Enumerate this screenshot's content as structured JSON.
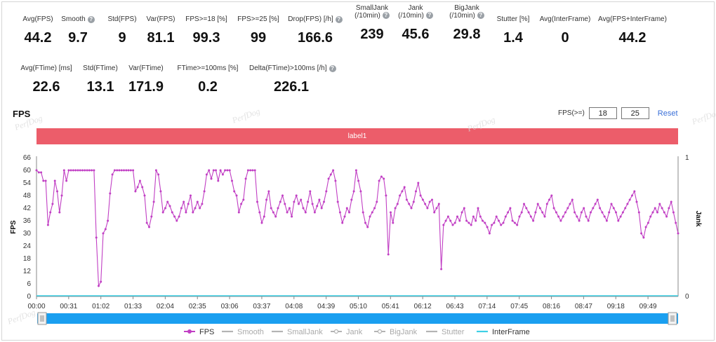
{
  "metrics_row1": [
    {
      "label": "Avg(FPS)",
      "value": "44.2",
      "help": false
    },
    {
      "label": "Smooth",
      "value": "9.7",
      "help": true
    },
    {
      "label": "Std(FPS)",
      "value": "9",
      "help": false
    },
    {
      "label": "Var(FPS)",
      "value": "81.1",
      "help": false
    },
    {
      "label": "FPS>=18 [%]",
      "value": "99.3",
      "help": false
    },
    {
      "label": "FPS>=25 [%]",
      "value": "99",
      "help": false
    },
    {
      "label": "Drop(FPS) [/h]",
      "value": "166.6",
      "help": true
    },
    {
      "label": "SmallJank",
      "label2": "(/10min)",
      "value": "239",
      "help": true
    },
    {
      "label": "Jank",
      "label2": "(/10min)",
      "value": "45.6",
      "help": true
    },
    {
      "label": "BigJank",
      "label2": "(/10min)",
      "value": "29.8",
      "help": true
    },
    {
      "label": "Stutter [%]",
      "value": "1.4",
      "help": false
    },
    {
      "label": "Avg(InterFrame)",
      "value": "0",
      "help": false
    },
    {
      "label": "Avg(FPS+InterFrame)",
      "value": "44.2",
      "help": false
    }
  ],
  "metrics_row2": [
    {
      "label": "Avg(FTime) [ms]",
      "value": "22.6",
      "help": false
    },
    {
      "label": "Std(FTime)",
      "value": "13.1",
      "help": false
    },
    {
      "label": "Var(FTime)",
      "value": "171.9",
      "help": false
    },
    {
      "label": "FTime>=100ms [%]",
      "value": "0.2",
      "help": false
    },
    {
      "label": "Delta(FTime)>100ms [/h]",
      "value": "226.1",
      "help": true
    }
  ],
  "section": {
    "title": "FPS"
  },
  "fps_filter": {
    "label": "FPS(>=)",
    "low": "18",
    "high": "25",
    "reset": "Reset"
  },
  "label_bar": {
    "text": "label1"
  },
  "watermark": "PerfDog",
  "colors": {
    "fps_line": "#c13fc4",
    "label_bar": "#ec5d6a",
    "interframe": "#3fd0e6",
    "slider": "#1a9ff0",
    "legend_grey": "#b4b4b4",
    "link": "#3a6fd8"
  },
  "chart_data": {
    "type": "line",
    "ylabel": "FPS",
    "y2label": "Jank",
    "ylim": [
      0,
      66
    ],
    "y2lim": [
      0,
      1
    ],
    "yticks": [
      "0",
      "6",
      "12",
      "18",
      "24",
      "30",
      "36",
      "42",
      "48",
      "54",
      "60",
      "66"
    ],
    "y2ticks": [
      "0",
      "1"
    ],
    "xticks": [
      "00:00",
      "00:31",
      "01:02",
      "01:33",
      "02:04",
      "02:35",
      "03:06",
      "03:37",
      "04:08",
      "04:39",
      "05:10",
      "05:41",
      "06:12",
      "06:43",
      "07:14",
      "07:45",
      "08:16",
      "08:47",
      "09:18",
      "09:49"
    ],
    "xmax_seconds": 618,
    "legend": [
      {
        "name": "FPS",
        "color": "#c13fc4",
        "active": true,
        "marker": "dot"
      },
      {
        "name": "Smooth",
        "color": "#b4b4b4",
        "active": false,
        "marker": "line"
      },
      {
        "name": "SmallJank",
        "color": "#b4b4b4",
        "active": false,
        "marker": "line"
      },
      {
        "name": "Jank",
        "color": "#b4b4b4",
        "active": false,
        "marker": "dot"
      },
      {
        "name": "BigJank",
        "color": "#b4b4b4",
        "active": false,
        "marker": "dot"
      },
      {
        "name": "Stutter",
        "color": "#b4b4b4",
        "active": false,
        "marker": "line"
      },
      {
        "name": "InterFrame",
        "color": "#3fd0e6",
        "active": true,
        "marker": "line"
      }
    ],
    "series": [
      {
        "name": "FPS",
        "values": [
          60,
          59,
          59,
          55,
          55,
          34,
          40,
          44,
          55,
          50,
          40,
          48,
          60,
          55,
          60,
          60,
          60,
          60,
          60,
          60,
          60,
          60,
          60,
          60,
          60,
          60,
          28,
          5,
          7,
          30,
          32,
          36,
          49,
          58,
          60,
          60,
          60,
          60,
          60,
          60,
          60,
          60,
          60,
          50,
          52,
          55,
          52,
          48,
          35,
          33,
          38,
          45,
          60,
          58,
          50,
          40,
          42,
          45,
          43,
          40,
          38,
          36,
          38,
          42,
          45,
          40,
          44,
          48,
          40,
          42,
          45,
          42,
          44,
          50,
          58,
          60,
          56,
          60,
          60,
          55,
          60,
          58,
          60,
          60,
          60,
          55,
          50,
          48,
          40,
          44,
          46,
          56,
          60,
          60,
          60,
          60,
          45,
          40,
          35,
          38,
          46,
          50,
          42,
          40,
          38,
          42,
          45,
          48,
          44,
          40,
          42,
          38,
          45,
          48,
          44,
          46,
          42,
          40,
          45,
          50,
          44,
          40,
          43,
          46,
          42,
          45,
          50,
          56,
          58,
          60,
          55,
          45,
          40,
          35,
          38,
          42,
          40,
          46,
          50,
          60,
          55,
          50,
          40,
          35,
          33,
          38,
          40,
          42,
          45,
          55,
          57,
          56,
          48,
          20,
          40,
          35,
          42,
          44,
          48,
          50,
          52,
          46,
          44,
          42,
          45,
          50,
          54,
          48,
          46,
          44,
          42,
          45,
          46,
          40,
          42,
          44,
          13,
          34,
          36,
          38,
          36,
          34,
          35,
          38,
          36,
          40,
          42,
          36,
          35,
          34,
          38,
          36,
          42,
          38,
          36,
          35,
          33,
          30,
          34,
          35,
          38,
          36,
          34,
          35,
          38,
          40,
          42,
          36,
          35,
          34,
          38,
          40,
          44,
          42,
          40,
          38,
          36,
          40,
          44,
          42,
          40,
          38,
          44,
          46,
          48,
          42,
          40,
          38,
          36,
          38,
          40,
          42,
          44,
          46,
          40,
          38,
          36,
          40,
          42,
          38,
          36,
          40,
          42,
          44,
          46,
          42,
          40,
          38,
          36,
          40,
          44,
          42,
          40,
          36,
          38,
          40,
          42,
          44,
          46,
          48,
          50,
          45,
          40,
          30,
          28,
          33,
          35,
          38,
          40,
          42,
          40,
          44,
          42,
          40,
          38,
          42,
          45,
          40,
          35,
          30
        ]
      }
    ]
  }
}
